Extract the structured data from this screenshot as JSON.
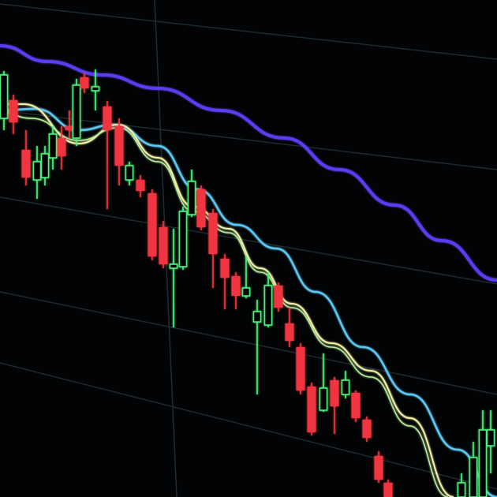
{
  "scene": {
    "subject": "candlestick-chart-on-screen",
    "colors": {
      "background": "#020304",
      "grid": "#1c2a30",
      "bullish": "#4cf27a",
      "bearish": "#f0343f",
      "ma_long": "#5a3ef0",
      "ma_mid": "#5ec8f0",
      "ma_short": "#f0f0a8",
      "ma_short2": "#b8f0a0"
    }
  }
}
